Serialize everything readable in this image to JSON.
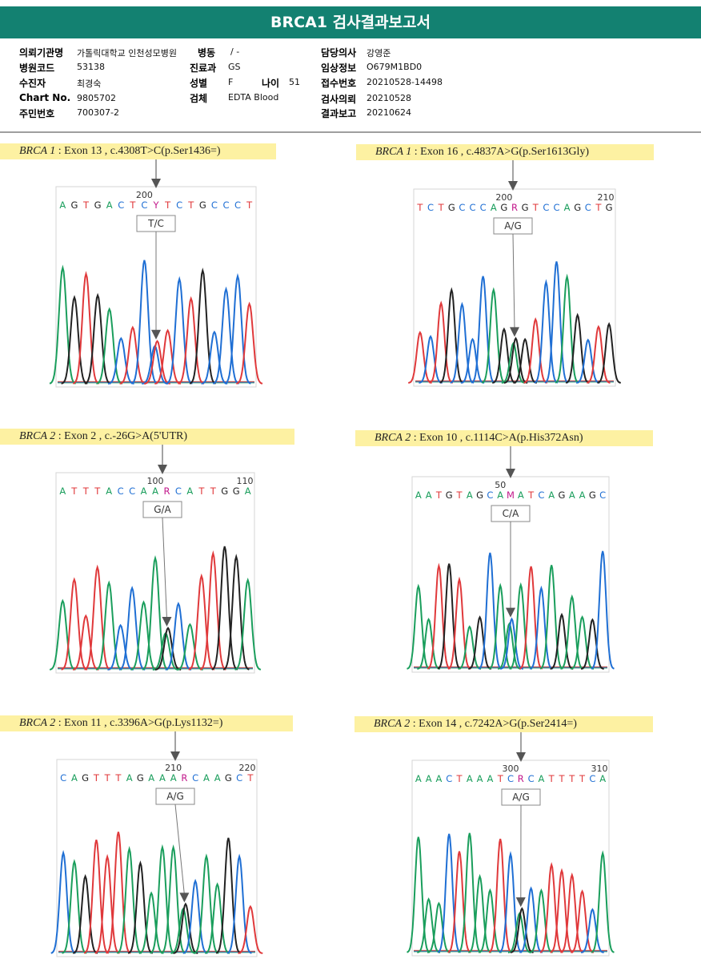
{
  "report": {
    "title": "BRCA1 검사결과보고서",
    "fields": [
      {
        "label": "의뢰기관명",
        "value": "가톨릭대학교 인천성모병원"
      },
      {
        "label": "병동",
        "value": "/ -"
      },
      {
        "label": "담당의사",
        "value": "강영준"
      },
      {
        "label": "병원코드",
        "value": "53138"
      },
      {
        "label": "진료과",
        "value": "GS"
      },
      {
        "label": "임상정보",
        "value": "O679M1BD0"
      },
      {
        "label": "수진자",
        "value": "최경숙"
      },
      {
        "label": "성별",
        "value": "F"
      },
      {
        "label": "나이",
        "value": "51"
      },
      {
        "label": "접수번호",
        "value": "20210528-14498"
      },
      {
        "label": "Chart No.",
        "value": "9805702"
      },
      {
        "label": "검체",
        "value": "EDTA Blood"
      },
      {
        "label": "검사의뢰",
        "value": "20210528"
      },
      {
        "label": "주민번호",
        "value": "700307-2"
      },
      {
        "label": "결과보고",
        "value": "20210624"
      }
    ]
  },
  "colors": {
    "A": "#1a9e5c",
    "C": "#1f6fd4",
    "G": "#222222",
    "T": "#e0393b",
    "ambig": "#c2188b",
    "header": "#138171",
    "caption": "#fdf1a2"
  },
  "panels": [
    {
      "gene": "BRCA 1",
      "detail": ": Exon 13 , c.4308T>C(p.Ser1436=)",
      "sequence": "AGTGACTCYTCTGCCCT",
      "marker_left": "200",
      "marker_right": "",
      "callout": "T/C"
    },
    {
      "gene": "BRCA 1",
      "detail": ": Exon 16 , c.4837A>G(p.Ser1613Gly)",
      "sequence": "TCTGCCCAGRGTCCAGCTG",
      "marker_left": "200",
      "marker_right": "210",
      "callout": "A/G"
    },
    {
      "gene": "BRCA 2",
      "detail": ": Exon 2 , c.-26G>A(5'UTR)",
      "sequence": "ATTTACCAARCATTGGA",
      "marker_left": "100",
      "marker_right": "110",
      "callout": "G/A"
    },
    {
      "gene": "BRCA 2",
      "detail": ": Exon 10 , c.1114C>A(p.His372Asn)",
      "sequence": "AATGTAGCAMATCAGAAGC",
      "marker_left": "50",
      "marker_right": "",
      "callout": "C/A"
    },
    {
      "gene": "BRCA 2",
      "detail": ": Exon 11 , c.3396A>G(p.Lys1132=)",
      "sequence": "CAGTTTAGAAARCAAGCT",
      "marker_left": "210",
      "marker_right": "220",
      "callout": "A/G"
    },
    {
      "gene": "BRCA 2",
      "detail": ": Exon 14 , c.7242A>G(p.Ser2414=)",
      "sequence": "AAACTAAATCRCATTTTCA",
      "marker_left": "300",
      "marker_right": "310",
      "callout": "A/G"
    }
  ]
}
